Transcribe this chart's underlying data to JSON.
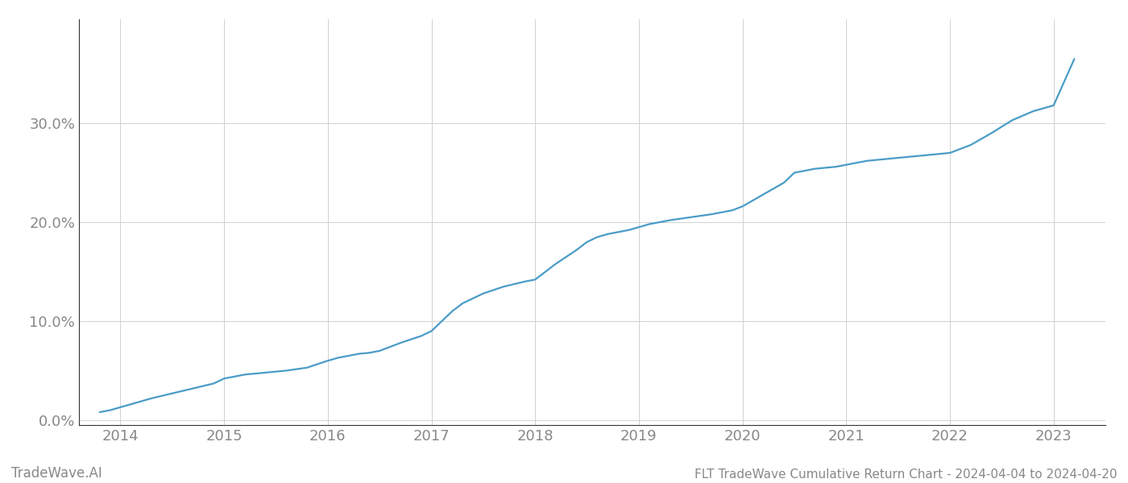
{
  "title": "FLT TradeWave Cumulative Return Chart - 2024-04-04 to 2024-04-20",
  "watermark": "TradeWave.AI",
  "line_color": "#4a9cc7",
  "background_color": "#ffffff",
  "grid_color": "#cccccc",
  "axis_color": "#888888",
  "spine_color": "#333333",
  "x_years": [
    2014,
    2015,
    2016,
    2017,
    2018,
    2019,
    2020,
    2021,
    2022,
    2023
  ],
  "x_values": [
    2013.8,
    2013.9,
    2014.0,
    2014.1,
    2014.2,
    2014.3,
    2014.5,
    2014.7,
    2014.9,
    2015.0,
    2015.1,
    2015.2,
    2015.4,
    2015.6,
    2015.8,
    2016.0,
    2016.1,
    2016.2,
    2016.3,
    2016.4,
    2016.5,
    2016.7,
    2016.9,
    2017.0,
    2017.1,
    2017.2,
    2017.3,
    2017.5,
    2017.7,
    2017.9,
    2018.0,
    2018.1,
    2018.2,
    2018.3,
    2018.4,
    2018.5,
    2018.6,
    2018.7,
    2018.8,
    2018.9,
    2019.0,
    2019.1,
    2019.2,
    2019.3,
    2019.5,
    2019.7,
    2019.9,
    2020.0,
    2020.2,
    2020.4,
    2020.5,
    2020.7,
    2020.9,
    2021.0,
    2021.2,
    2021.4,
    2021.6,
    2021.8,
    2022.0,
    2022.2,
    2022.4,
    2022.6,
    2022.8,
    2023.0,
    2023.2
  ],
  "y_values": [
    0.008,
    0.01,
    0.013,
    0.016,
    0.019,
    0.022,
    0.027,
    0.032,
    0.037,
    0.042,
    0.044,
    0.046,
    0.048,
    0.05,
    0.053,
    0.06,
    0.063,
    0.065,
    0.067,
    0.068,
    0.07,
    0.078,
    0.085,
    0.09,
    0.1,
    0.11,
    0.118,
    0.128,
    0.135,
    0.14,
    0.142,
    0.15,
    0.158,
    0.165,
    0.172,
    0.18,
    0.185,
    0.188,
    0.19,
    0.192,
    0.195,
    0.198,
    0.2,
    0.202,
    0.205,
    0.208,
    0.212,
    0.216,
    0.228,
    0.24,
    0.25,
    0.254,
    0.256,
    0.258,
    0.262,
    0.264,
    0.266,
    0.268,
    0.27,
    0.278,
    0.29,
    0.303,
    0.312,
    0.318,
    0.365
  ],
  "ylim": [
    -0.005,
    0.405
  ],
  "yticks": [
    0.0,
    0.1,
    0.2,
    0.3
  ],
  "xlim": [
    2013.6,
    2023.5
  ],
  "title_fontsize": 11,
  "watermark_fontsize": 12,
  "tick_fontsize": 13,
  "line_width": 1.6
}
